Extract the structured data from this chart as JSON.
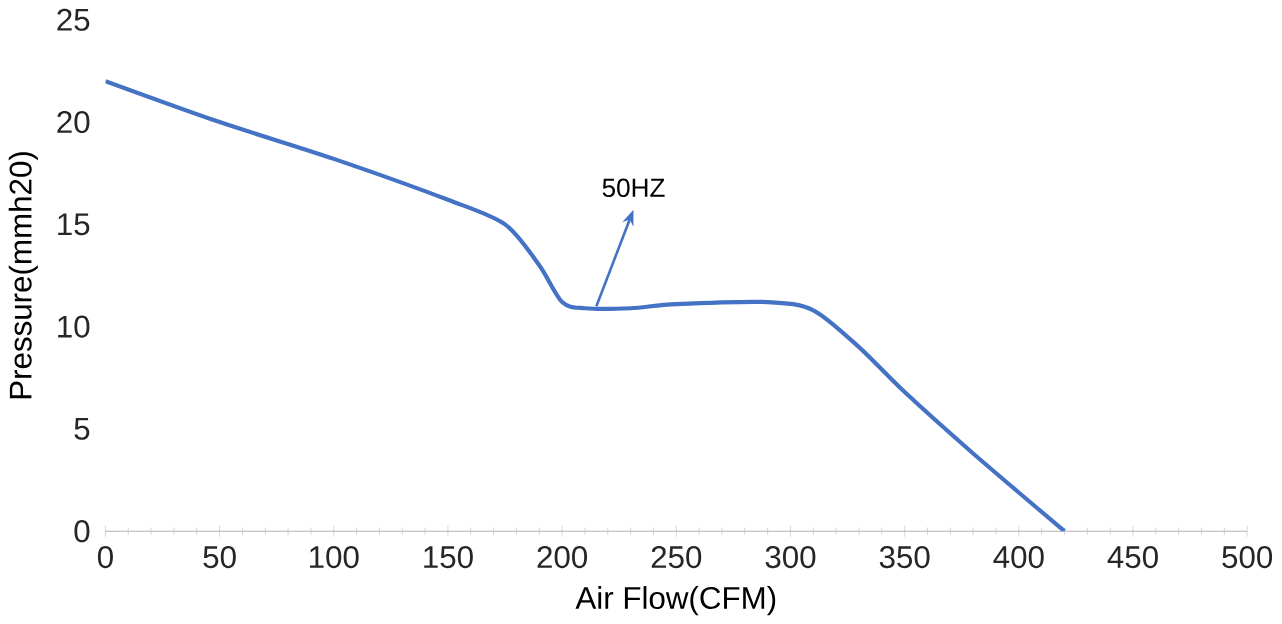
{
  "chart_data": {
    "type": "line",
    "xlabel": "Air Flow(CFM)",
    "ylabel": "Pressure(mmh20)",
    "x": [
      0,
      50,
      100,
      150,
      175,
      190,
      200,
      210,
      230,
      250,
      290,
      310,
      330,
      350,
      380,
      420
    ],
    "series": [
      {
        "color": "#4472c4",
        "values": [
          22,
          20,
          18.2,
          16.2,
          15,
          13,
          11.2,
          10.9,
          10.9,
          11.1,
          11.2,
          10.8,
          9,
          6.8,
          3.8,
          0
        ]
      }
    ],
    "annotations": [
      {
        "text": "50HZ",
        "x": 215,
        "y": 11
      }
    ],
    "xlim": [
      0,
      500
    ],
    "ylim": [
      0,
      25
    ],
    "xticks": [
      0,
      50,
      100,
      150,
      200,
      250,
      300,
      350,
      400,
      450,
      500
    ],
    "yticks": [
      0,
      5,
      10,
      15,
      20,
      25
    ],
    "grid": false,
    "marker": "none",
    "line_style": "solid"
  }
}
